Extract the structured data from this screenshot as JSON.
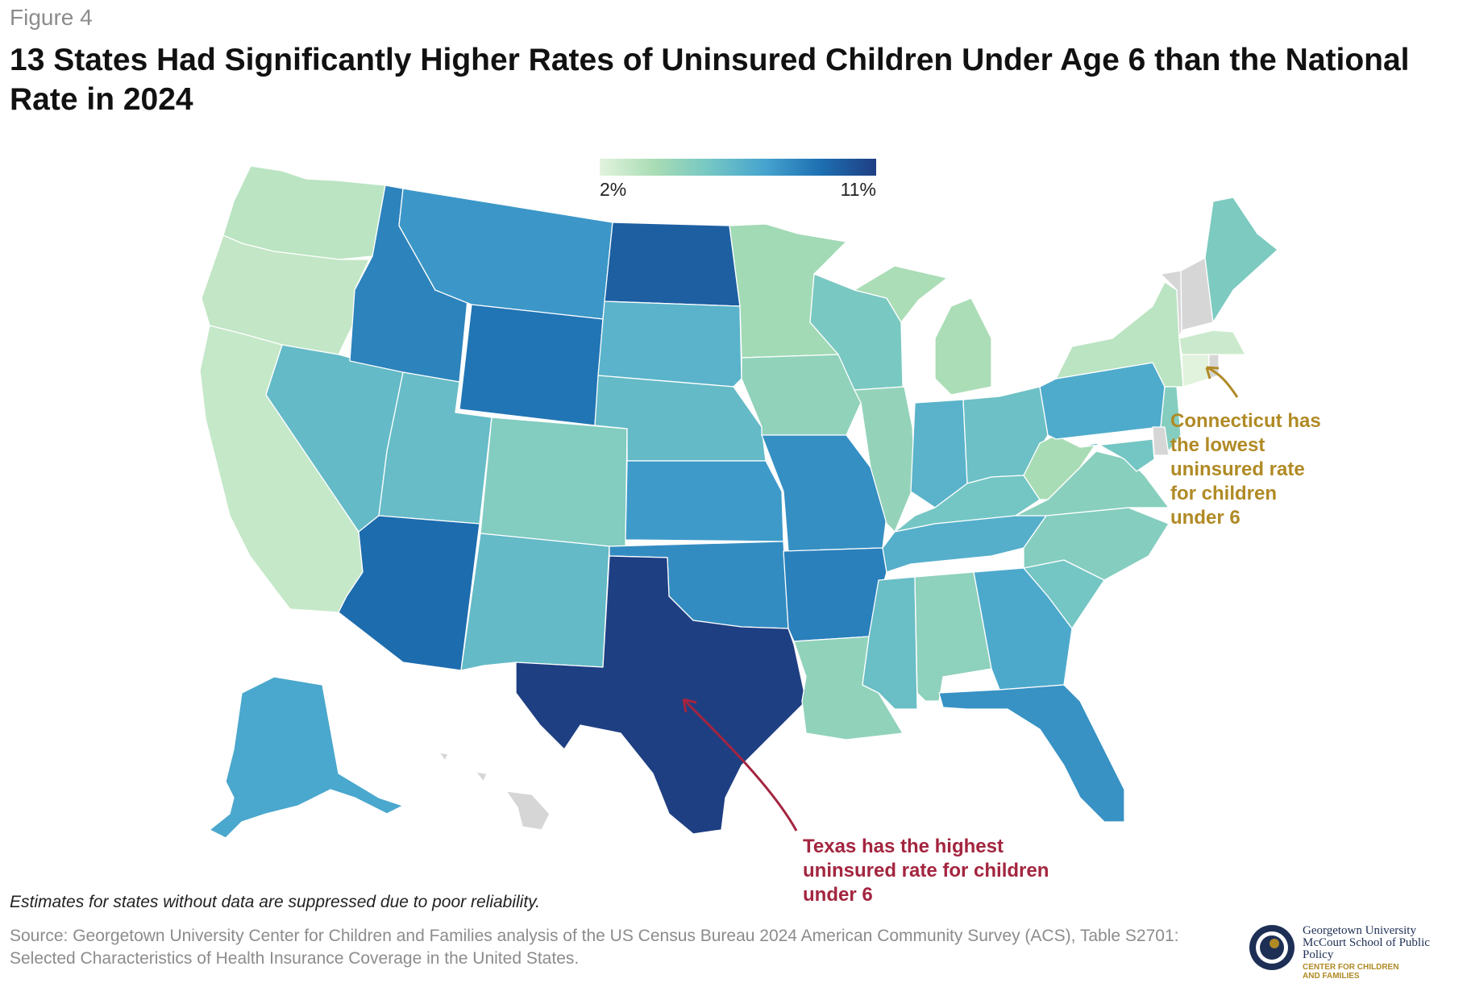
{
  "figure_label": "Figure 4",
  "title": "13 States Had Significantly Higher Rates of Uninsured Children Under Age 6 than the National Rate in 2024",
  "legend": {
    "min_label": "2%",
    "max_label": "11%",
    "min": 2,
    "max": 11,
    "colors": [
      "#e2f3dd",
      "#a8dcb4",
      "#74c6c4",
      "#45a3ce",
      "#1d6fb1",
      "#1f3f83"
    ]
  },
  "map_data": {
    "measure": "uninsured rate, children under 6, 2024 (%)",
    "suppressed_color": "#d6d6d6",
    "states": [
      {
        "abbr": "WA",
        "value": 3.2
      },
      {
        "abbr": "OR",
        "value": 3.0
      },
      {
        "abbr": "CA",
        "value": 2.9
      },
      {
        "abbr": "NV",
        "value": 6.2
      },
      {
        "abbr": "ID",
        "value": 8.5
      },
      {
        "abbr": "MT",
        "value": 7.8
      },
      {
        "abbr": "WY",
        "value": 9.0
      },
      {
        "abbr": "UT",
        "value": 6.1
      },
      {
        "abbr": "AZ",
        "value": 9.3
      },
      {
        "abbr": "CO",
        "value": 5.1
      },
      {
        "abbr": "NM",
        "value": 6.2
      },
      {
        "abbr": "ND",
        "value": 9.8
      },
      {
        "abbr": "SD",
        "value": 6.6
      },
      {
        "abbr": "NE",
        "value": 6.2
      },
      {
        "abbr": "KS",
        "value": 7.7
      },
      {
        "abbr": "OK",
        "value": 8.2
      },
      {
        "abbr": "TX",
        "value": 11.0
      },
      {
        "abbr": "MN",
        "value": 4.0
      },
      {
        "abbr": "IA",
        "value": 4.6
      },
      {
        "abbr": "MO",
        "value": 8.1
      },
      {
        "abbr": "AR",
        "value": 8.6
      },
      {
        "abbr": "LA",
        "value": 4.6
      },
      {
        "abbr": "WI",
        "value": 5.4
      },
      {
        "abbr": "IL",
        "value": 4.5
      },
      {
        "abbr": "MI",
        "value": 3.7
      },
      {
        "abbr": "IN",
        "value": 6.6
      },
      {
        "abbr": "OH",
        "value": 5.9
      },
      {
        "abbr": "KY",
        "value": 5.6
      },
      {
        "abbr": "TN",
        "value": 6.8
      },
      {
        "abbr": "MS",
        "value": 6.0
      },
      {
        "abbr": "AL",
        "value": 4.7
      },
      {
        "abbr": "GA",
        "value": 7.1
      },
      {
        "abbr": "FL",
        "value": 8.0
      },
      {
        "abbr": "SC",
        "value": 5.6
      },
      {
        "abbr": "NC",
        "value": 5.0
      },
      {
        "abbr": "VA",
        "value": 4.9
      },
      {
        "abbr": "WV",
        "value": 3.8
      },
      {
        "abbr": "PA",
        "value": 7.0
      },
      {
        "abbr": "NY",
        "value": 3.2
      },
      {
        "abbr": "ME",
        "value": 5.3
      },
      {
        "abbr": "MA",
        "value": 2.7
      },
      {
        "abbr": "CT",
        "value": 2.0
      },
      {
        "abbr": "NJ",
        "value": 5.0
      },
      {
        "abbr": "MD",
        "value": 5.6
      },
      {
        "abbr": "AK",
        "value": 7.2
      },
      {
        "abbr": "VT",
        "value": null
      },
      {
        "abbr": "NH",
        "value": null
      },
      {
        "abbr": "RI",
        "value": null
      },
      {
        "abbr": "DE",
        "value": null
      },
      {
        "abbr": "HI",
        "value": null
      }
    ]
  },
  "annotations": {
    "connecticut": "Connecticut has\nthe lowest\nuninsured rate\nfor children\nunder 6",
    "texas": "Texas has the highest\nuninsured rate for children\nunder 6"
  },
  "note": "Estimates for states without data are suppressed due to poor reliability.",
  "source": "Source: Georgetown University Center for Children and Families analysis of the US Census Bureau 2024 American Community Survey (ACS), Table S2701: Selected Characteristics of Health Insurance Coverage in the United States.",
  "logo": {
    "line1": "Georgetown University",
    "line2": "McCourt School of Public Policy",
    "line3": "CENTER FOR CHILDREN",
    "line4": "AND FAMILIES"
  }
}
